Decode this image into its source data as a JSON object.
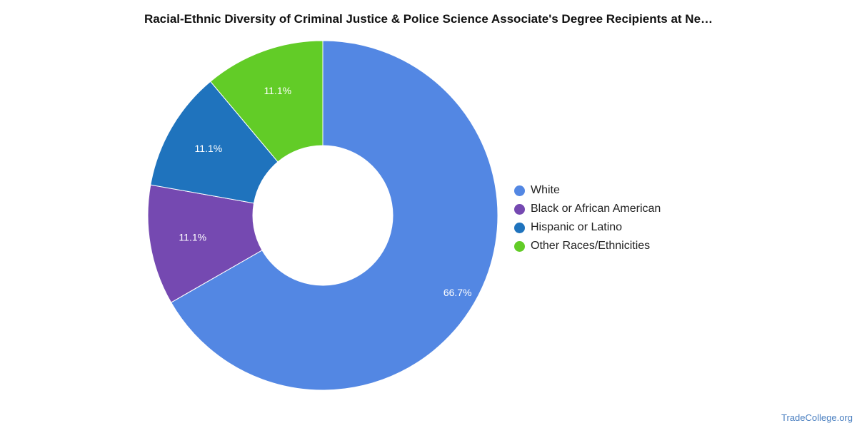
{
  "chart_data": {
    "type": "pie",
    "title": "Racial-Ethnic Diversity of Criminal Justice & Police Science Associate's Degree Recipients at Ne…",
    "donut": true,
    "legend_position": "right",
    "slices": [
      {
        "name": "White",
        "value": 66.7,
        "label": "66.7%",
        "color": "#5387e3"
      },
      {
        "name": "Black or African American",
        "value": 11.1,
        "label": "11.1%",
        "color": "#7549b1"
      },
      {
        "name": "Hispanic or Latino",
        "value": 11.1,
        "label": "11.1%",
        "color": "#1f73bd"
      },
      {
        "name": "Other Races/Ethnicities",
        "value": 11.1,
        "label": "11.1%",
        "color": "#62cc27"
      }
    ]
  },
  "watermark": "TradeCollege.org"
}
